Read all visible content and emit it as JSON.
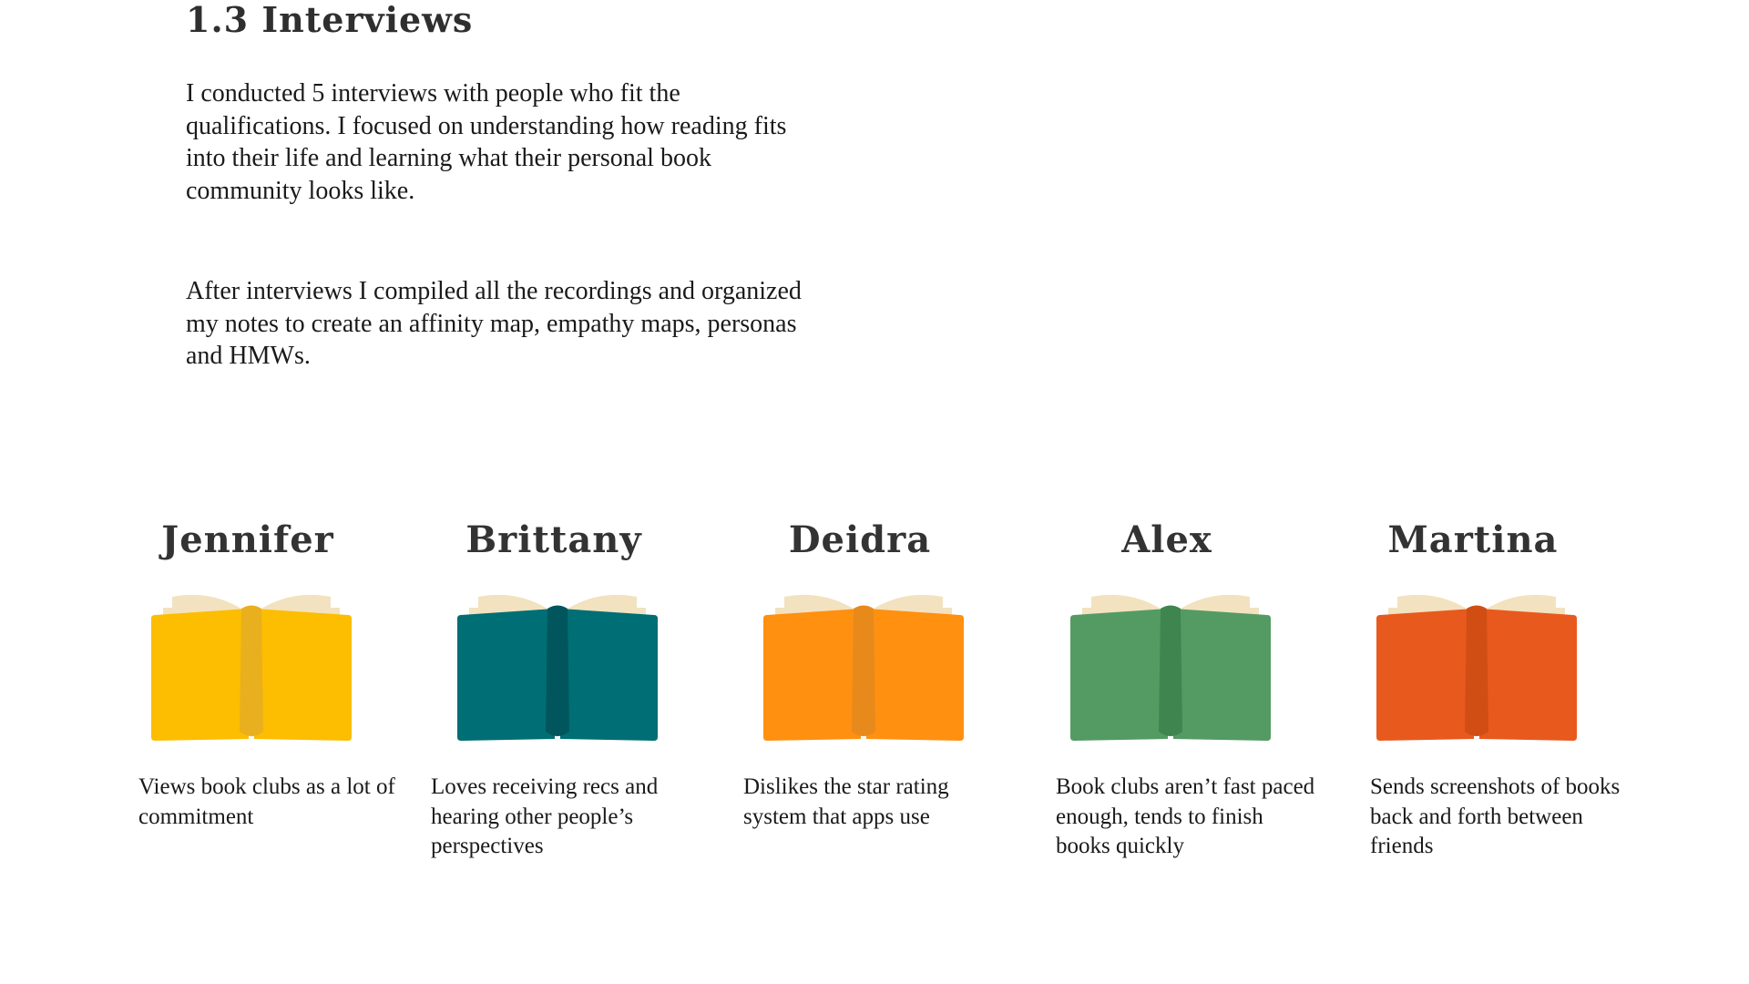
{
  "section": {
    "title": "1.3 Interviews",
    "paragraphs": [
      "I conducted 5 interviews with people who fit the qualifications. I focused on understanding how reading fits into their life and learning what their personal book community looks like.",
      "After interviews I compiled all the recordings and organized my notes to create an affinity map, empathy maps, personas and HMWs."
    ]
  },
  "personas": [
    {
      "name": "Jennifer",
      "quote": "Views book clubs as a lot of commitment",
      "icon": "open-book-icon",
      "cover_color": "#FDBD00",
      "spine_color": "#E8B01E"
    },
    {
      "name": "Brittany",
      "quote": "Loves receiving recs and hearing other people’s perspectives",
      "icon": "open-book-icon",
      "cover_color": "#006E75",
      "spine_color": "#00565C"
    },
    {
      "name": "Deidra",
      "quote": "Dislikes the star rating system that apps use",
      "icon": "open-book-icon",
      "cover_color": "#FF9010",
      "spine_color": "#E8891C"
    },
    {
      "name": "Alex",
      "quote": "Book clubs aren’t fast paced enough, tends to finish books quickly",
      "icon": "open-book-icon",
      "cover_color": "#539B63",
      "spine_color": "#3E8550"
    },
    {
      "name": "Martina",
      "quote": "Sends screenshots of books back and forth between friends",
      "icon": "open-book-icon",
      "cover_color": "#E8591E",
      "spine_color": "#D04E14"
    }
  ],
  "colors": {
    "page_color": "#F2E2BF",
    "heading_text": "#333333",
    "body_text": "#1A1A1A"
  }
}
